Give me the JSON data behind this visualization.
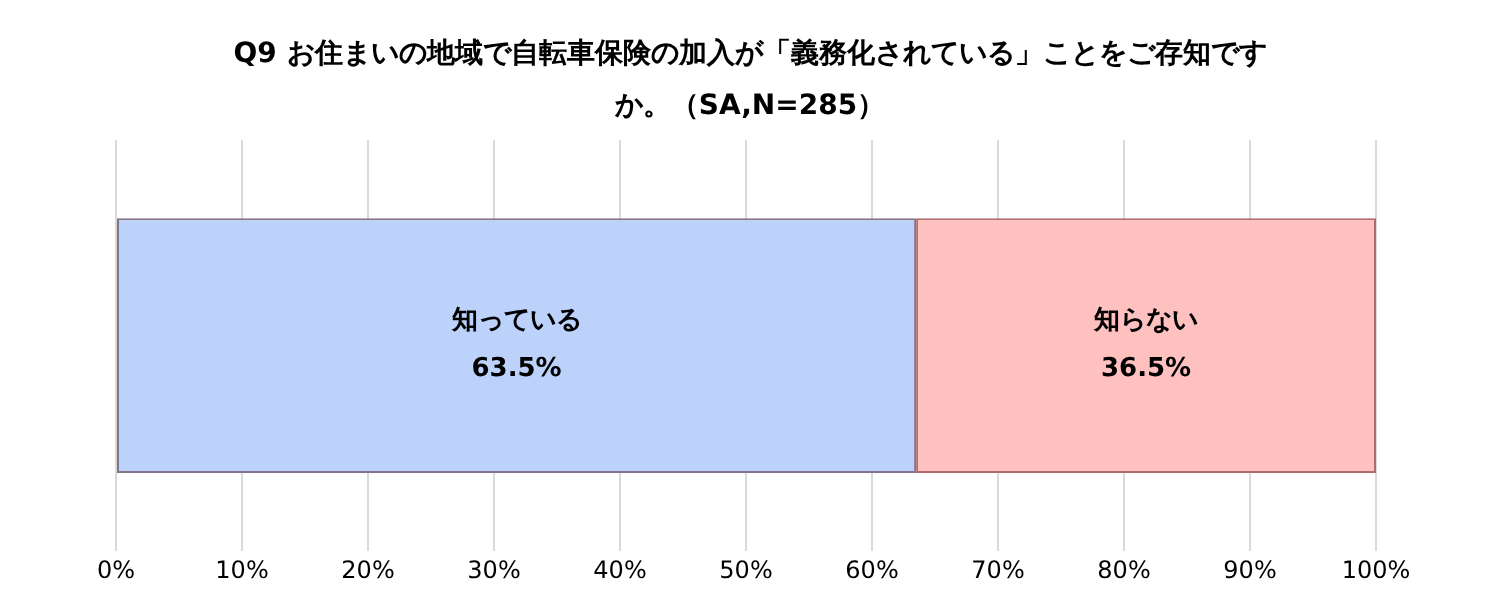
{
  "chart_data": {
    "type": "bar",
    "orientation": "horizontal",
    "stacked": true,
    "title": "Q9 お住まいの地域で自転車保険の加入が「義務化されている」ことをご存知ですか。（SA,N=285）",
    "categories": [
      null
    ],
    "series": [
      {
        "name": "知っている",
        "color": "#bcd2fa",
        "values": [
          63.5
        ],
        "value_labels": [
          "63.5%"
        ]
      },
      {
        "name": "知らない",
        "color": "#ffc0c0",
        "values": [
          36.5
        ],
        "value_labels": [
          "36.5%"
        ]
      }
    ],
    "xlim": [
      0,
      100
    ],
    "xticks": [
      {
        "value": 0,
        "label": "0%"
      },
      {
        "value": 10,
        "label": "10%"
      },
      {
        "value": 20,
        "label": "20%"
      },
      {
        "value": 30,
        "label": "30%"
      },
      {
        "value": 40,
        "label": "40%"
      },
      {
        "value": 50,
        "label": "50%"
      },
      {
        "value": 60,
        "label": "60%"
      },
      {
        "value": 70,
        "label": "70%"
      },
      {
        "value": 80,
        "label": "80%"
      },
      {
        "value": 90,
        "label": "90%"
      },
      {
        "value": 100,
        "label": "100%"
      }
    ],
    "grid": "x",
    "legend": false,
    "tick_labels": "x"
  }
}
